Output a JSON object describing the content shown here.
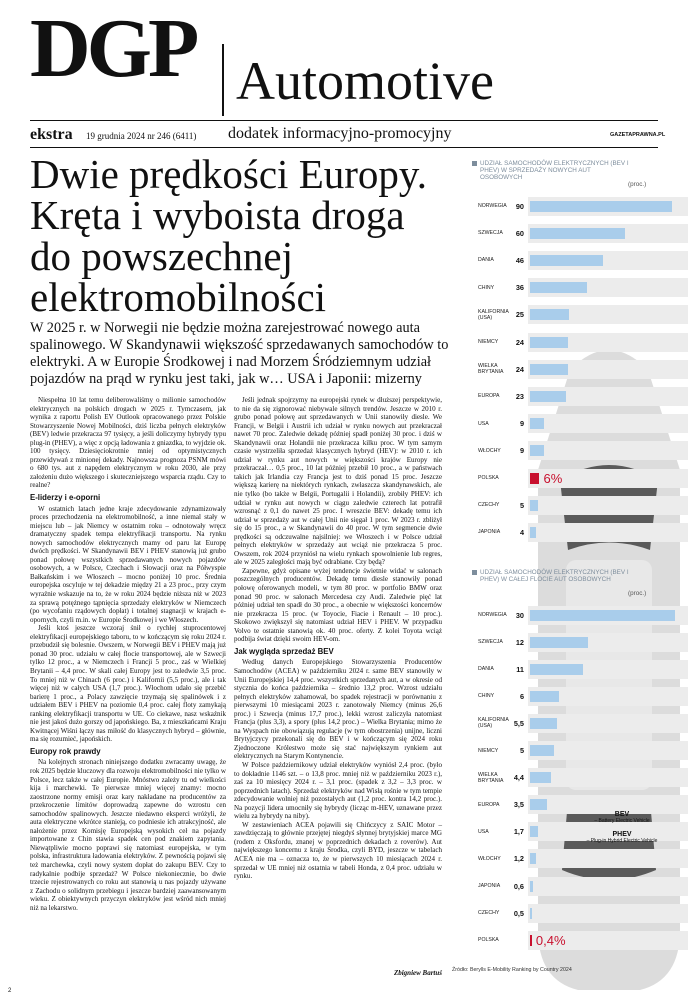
{
  "header": {
    "logo": "DGP",
    "section": "Automotive",
    "edition": "ekstra",
    "date": "19 grudnia 2024 nr 246 (6411)",
    "supplement": "dodatek informacyjno-promocyjny",
    "site": "GAZETAPRAWNA.PL"
  },
  "article": {
    "title": "Dwie prędkości Europy. Kręta i wyboista droga do powszechnej elektromobilności",
    "lead": "W 2025 r. w Norwegii nie będzie można zarejestrować nowego auta spalinowego. W Skandynawii większość sprzedawanych samochodów to elektryki. A w Europie Środkowej i nad Morzem Śródziemnym udział pojazdów na prąd w rynku jest taki, jak w… USA i Japonii: mizerny",
    "columns": [
      [
        {
          "text": "Niespełna 10 lat temu deliberowaliśmy o milionie samochodów elektrycznych na polskich drogach w 2025 r. Tymczasem, jak wynika z raportu Polish EV Outlook opracowanego przez Polskie Stowarzyszenie Nowej Mobilności, dziś liczba pełnych elektryków (BEV) ledwie przekracza 97 tysięcy, a jeśli doliczymy hybrydy typu plug-in (PHEV), a więc z opcją ładowania z gniazdka, to wyjdzie ok. 100 tysięcy. Dziesięciokrotnie mniej od optymistycznych przewidywań z minionej dekady. Najnowsza prognoza PSNM mówi o 680 tys. aut z napędem elektrycznym w roku 2030, ale przy założeniu dużo większego i skuteczniejszego wsparcia rządu. Czy to realne?"
        },
        {
          "heading": "E-liderzy i e-oporni"
        },
        {
          "text": "W ostatnich latach jedne kraje zdecydowanie zdynamizowały proces przechodzenia na elektromobilność, a inne niemal stały w miejscu lub – jak Niemcy w ostatnim roku – odnotowały wręcz dramatyczny spadek tempa elektryfikacji transportu. Na rynku nowych samochodów elektrycznych mamy od paru lat Europę dwóch prędkości. W Skandynawii BEV i PHEV stanowią już grubo ponad połowę wszystkich sprzedawanych nowych pojazdów osobowych, a w Polsce, Czechach i Słowacji oraz na Półwyspie Bałkańskim i we Włoszech – mocno poniżej 10 proc. Średnia europejska oscyluje w tej dekadzie między 21 a 23 proc., przy czym wyraźnie wskazuje na to, że w roku 2024 będzie niższa niż w 2023 za sprawą potężnego tąpnięcia sprzedaży elektryków w Niemczech (po wycofaniu rządowych dopłat) i totalnej stagnacji w krajach e-opornych, czyli m.in. w Europie Środkowej i we Włoszech."
        },
        {
          "text": "Jeśli ktoś jeszcze wczoraj śnił o rychłej stuprocentowej elektryfikacji europejskiego taboru, to w kończącym się roku 2024 r. przebudził się bolesnie. Owszem, w Norwegii BEV i PHEV mają już ponad 30 proc. udziału w całej flocie transportowej, ale w Szwecji tylko 12 proc., a w Niemczech i Francji 5 proc., zaś w Wielkiej Brytanii – 4,4 proc. W skali całej Europy jest to zaledwie 3,5 proc. To mniej niż w Chinach (6 proc.) i Kalifornii (5,5 proc.), ale i tak więcej niż w całych USA (1,7 proc.). Włochom udało się przebić barierę 1 proc., a Polacy zawzięcie trzymają się spalinówek i z udziałem BEV i PHEV na poziomie 0,4 proc. całej floty zamykają ranking elektryfikacji transportu w UE. Co ciekawe, nasz wskaźnik nie jest jakoś dużo gorszy od japońskiego. Ba, z mieszkańcami Kraju Kwitnącej Wiśni łączy nas miłość do klasycznych hybryd – głównie, ma się rozumieć, japońskich."
        },
        {
          "heading": "Europy rok prawdy"
        },
        {
          "text": "Na kolejnych stronach niniejszego dodatku zwracamy uwagę, że rok 2025 będzie kluczowy dla rozwoju elektromobilności nie tylko w Polsce, lecz także w całej Europie. Mnóstwo zależy tu od wielkości kija i marchewki. Te pierwsze mniej więcej znamy: mocno zaostrzone normy emisji oraz kary nakładane na producentów za przekroczenie limitów doprowadzą zapewne do wzrostu cen samochodów spalinowych. Jeszcze niedawno eksperci wróżyli, że auta elektryczne wkrótce stanieją, co podniesie ich atrakcyjność, ale nałożenie przez Komisję Europejską wysokich ceł na pojazdy importowane z Chin stawia spadek cen pod znakiem zapytania. Niewątpliwie mocno poprawi się natomiast europejska, w tym polska, infrastruktura ładowania elektryków. Z pewnością pojawi się też marchewka, czyli nowy system dopłat do zakupu BEV. Czy to radykalnie podbije sprzedaż? W Polsce niekoniecznie, bo dwie trzecie rejestrowanych co roku aut stanowią u nas pojazdy używane z Zachodu o solidnym przebiegu i jeszcze bardziej zaawansowanym wieku. Z obiektywnych przyczyn elektryków jest wśród nich mniej niż na lekarstwo."
        }
      ],
      [
        {
          "text": "Jeśli jednak spojrzymy na europejski rynek w dłuższej perspektywie, to nie da się zignorować niebywale silnych trendów. Jeszcze w 2010 r. grubo ponad połowę aut sprzedawanych w Unii stanowiły diesle. We Francji, w Belgii i Austrii ich udział w rynku nowych aut przekraczał nawet 70 proc. Zaledwie dekadę później spadł poniżej 30 proc. i dziś w Skandynawii oraz Holandii nie przekracza kilku proc. W tym samym czasie wystrzeliła sprzedaż klasycznych hybryd (HEV): w 2010 r. ich udział w rynku aut nowych w większości krajów Europy nie przekraczał… 0,5 proc., 10 lat później przebił 10 proc., a w państwach takich jak Irlandia czy Francja jest to dziś ponad 15 proc. Jeszcze większą karierę na niektórych rynkach, zwłaszcza skandynawskich, ale nie tylko (bo także w Belgii, Portugalii i Holandii), zrobiły PHEV: ich udział w rynku aut nowych w ciągu zaledwie czterech lat potrafił wzrosnąć z 0,1 do nawet 25 proc. I wreszcie BEV: dekadę temu ich udział w sprzedaży aut w całej Unii nie sięgał 1 proc. W 2023 r. zbliżył się do 15 proc., a w Skandynawii do 40 proc. W tym segmencie dwie prędkości są odczuwalne najsilniej: we Włoszech i w Polsce udział pełnych elektryków w sprzedaży aut wciąż nie przekracza 5 proc. Owszem, rok 2024 przyniósł na wielu rynkach spowolnienie lub regres, ale w 2025 zaległości mają być odrabiane. Czy będą?"
        },
        {
          "text": "Zapewne, gdyż opisane wyżej tendencje świetnie widać w salonach poszczególnych producentów. Dekadę temu diesle stanowiły ponad połowę oferowanych modeli, w tym 80 proc. w portfolio BMW oraz ponad 90 proc. w salonach Mercedesa czy Audi. Zaledwie pięć lat później udział ten spadł do 30 proc., a obecnie w większości koncernów nie przekracza 15 proc. (w Toyocie, Fiacie i Renault – 10 proc.). Skokowo zwiększył się natomiast udział HEV i PHEV. W przypadku Volvo te ostatnie stanowią ok. 40 proc. oferty. Z kolei Toyota wciąż podbija świat dzięki swoim HEV-om."
        },
        {
          "heading": "Jak wygląda sprzedaż BEV"
        },
        {
          "text": "Według danych Europejskiego Stowarzyszenia Producentów Samochodów (ACEA) w październiku 2024 r. same BEV stanowiły w Unii Europejskiej 14,4 proc. wszystkich sprzedanych aut, a w okresie od stycznia do końca października – średnio 13,2 proc. Wzrost udziału pełnych elektryków zahamował, bo spadek rejestracji w porównaniu z pierwszymi 10 miesiącami 2023 r. zanotowały Niemcy (minus 26,6 proc.) i Szwecja (minus 17,7 proc.), lekki wzrost zaliczyła natomiast Francja (plus 3,3), a spory (plus 14,2 proc.) – Wielka Brytania; mimo że na Wyspach nie obowiązują regulacje (w tym obostrzenia) unijne, liczni Brytyjczycy przekonali się do BEV i w kończącym się 2024 roku Zjednoczone Królestwo może się stać największym rynkiem aut elektrycznych na Starym Kontynencie."
        },
        {
          "text": "W Polsce październikowy udział elektryków wyniósł 2,4 proc. (było to dokładnie 1146 szt. – o 13,8 proc. mniej niż w październiku 2023 r.), zaś za 10 miesięcy 2024 r. – 3,1 proc. (spadek z 3,2 – 3,3 proc. w poprzednich latach). Sprzedaż elektryków nad Wisłą rośnie w tym tempie zdecydowanie wolniej niż pozostałych aut (1,2 proc. kontra 14,2 proc.). Na pozycji lidera umocniły się hybrydy (licząc m-HEV, uznawane przez wielu za hybrydy na niby)."
        },
        {
          "text": "W zestawieniach ACEA pojawili się Chińczycy z SAIC Motor – zawdzięczają to głównie przejętej niegdyś słynnej brytyjskiej marce MG (rodem z Oksfordu, znanej w poprzednich dekadach z roverów). Aut największego koncernu z kraju Środka, czyli BYD, jeszcze w tabelach ACEA nie ma – oznacza to, że w pierwszych 10 miesiącach 2024 r. sprzedał w UE mniej niż ostatnia w tabeli Honda, z 0,4 proc. udziału w rynku."
        }
      ]
    ],
    "author": "Zbigniew Bartuś",
    "page": "2"
  },
  "charts": [
    {
      "type": "bar",
      "orientation": "horizontal",
      "title": "UDZIAŁ SAMOCHODÓW ELEKTRYCZNYCH (BEV I PHEV) W SPRZEDAŻY NOWYCH AUT OSOBOWYCH",
      "unit": "(proc.)",
      "categories": [
        "NORWEGIA",
        "SZWECJA",
        "DANIA",
        "CHINY",
        "KALIFORNIA (USA)",
        "NIEMCY",
        "WIELKA BRYTANIA",
        "EUROPA",
        "USA",
        "WŁOCHY",
        "POLSKA",
        "CZECHY",
        "JAPONIA"
      ],
      "values": [
        90,
        60,
        46,
        36,
        25,
        24,
        24,
        23,
        9,
        9,
        6,
        5,
        4
      ],
      "value_labels": [
        "90",
        "60",
        "46",
        "36",
        "25",
        "24",
        "24",
        "23",
        "9",
        "9",
        "6%",
        "5",
        "4"
      ],
      "colors": [
        "#a9cdeb",
        "#a9cdeb",
        "#a9cdeb",
        "#a9cdeb",
        "#a9cdeb",
        "#a9cdeb",
        "#a9cdeb",
        "#a9cdeb",
        "#a9cdeb",
        "#a9cdeb",
        "#c8102e",
        "#a9cdeb",
        "#a9cdeb"
      ],
      "xlim": [
        0,
        95
      ]
    },
    {
      "type": "bar",
      "orientation": "horizontal",
      "title": "UDZIAŁ SAMOCHODÓW ELEKTRYCZNYCH (BEV I PHEV) W CAŁEJ FLOCIE AUT OSOBOWYCH",
      "unit": "(proc.)",
      "categories": [
        "NORWEGIA",
        "SZWECJA",
        "DANIA",
        "CHINY",
        "KALIFORNIA (USA)",
        "NIEMCY",
        "WIELKA BRYTANIA",
        "EUROPA",
        "USA",
        "WŁOCHY",
        "JAPONIA",
        "CZECHY",
        "POLSKA"
      ],
      "values": [
        30,
        12,
        11,
        6,
        5.5,
        5,
        4.4,
        3.5,
        1.7,
        1.2,
        0.6,
        0.5,
        0.4
      ],
      "value_labels": [
        "30",
        "12",
        "11",
        "6",
        "5,5",
        "5",
        "4,4",
        "3,5",
        "1,7",
        "1,2",
        "0,6",
        "0,5",
        "0,4%"
      ],
      "colors": [
        "#a9cdeb",
        "#a9cdeb",
        "#a9cdeb",
        "#a9cdeb",
        "#a9cdeb",
        "#a9cdeb",
        "#a9cdeb",
        "#a9cdeb",
        "#a9cdeb",
        "#a9cdeb",
        "#a9cdeb",
        "#a9cdeb",
        "#c8102e"
      ],
      "xlim": [
        0,
        31
      ]
    }
  ],
  "legend": [
    {
      "term": "BEV",
      "desc": "– Battery Electric Vehicle"
    },
    {
      "term": "PHEV",
      "desc": "– Plug-in Hybrid Electric Vehicle"
    }
  ],
  "source": "Źródło: Berylls E-Mobility Ranking by Country 2024"
}
